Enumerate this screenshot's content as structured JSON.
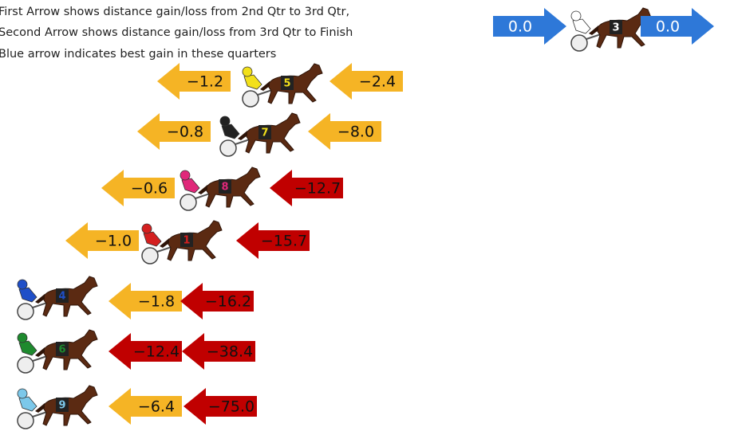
{
  "legend": {
    "lines": [
      "First Arrow shows distance gain/loss from 2nd Qtr to 3rd Qtr,",
      "Second Arrow shows distance gain/loss from 3rd Qtr to Finish",
      "Blue arrow indicates best gain in these quarters"
    ]
  },
  "leader": {
    "horse": "3",
    "silk": "#ffffff",
    "arrows": [
      {
        "label": "0.0",
        "color": "#2e78d8"
      },
      {
        "label": "0.0",
        "color": "#2e78d8"
      }
    ]
  },
  "rows": [
    {
      "horse": "5",
      "silk": "#f2e01a",
      "arrows": [
        {
          "label": "−1.2",
          "color": "#f5b425"
        },
        {
          "label": "−2.4",
          "color": "#f5b425"
        }
      ]
    },
    {
      "horse": "7",
      "silk": "#222222",
      "arrows": [
        {
          "label": "−0.8",
          "color": "#f5b425"
        },
        {
          "label": "−8.0",
          "color": "#f5b425"
        }
      ]
    },
    {
      "horse": "8",
      "silk": "#e0287a",
      "arrows": [
        {
          "label": "−0.6",
          "color": "#f5b425"
        },
        {
          "label": "−12.7",
          "color": "#c00000"
        }
      ]
    },
    {
      "horse": "1",
      "silk": "#d42020",
      "arrows": [
        {
          "label": "−1.0",
          "color": "#f5b425"
        },
        {
          "label": "−15.7",
          "color": "#c00000"
        }
      ]
    },
    {
      "horse": "4",
      "silk": "#1f4fc8",
      "arrows": [
        {
          "label": "−1.8",
          "color": "#f5b425"
        },
        {
          "label": "−16.2",
          "color": "#c00000"
        }
      ]
    },
    {
      "horse": "6",
      "silk": "#1e8a2e",
      "arrows": [
        {
          "label": "−12.4",
          "color": "#c00000"
        },
        {
          "label": "−38.4",
          "color": "#c00000"
        }
      ]
    },
    {
      "horse": "9",
      "silk": "#7cc8ea",
      "arrows": [
        {
          "label": "−6.4",
          "color": "#f5b425"
        },
        {
          "label": "−75.0",
          "color": "#c00000"
        }
      ]
    }
  ]
}
